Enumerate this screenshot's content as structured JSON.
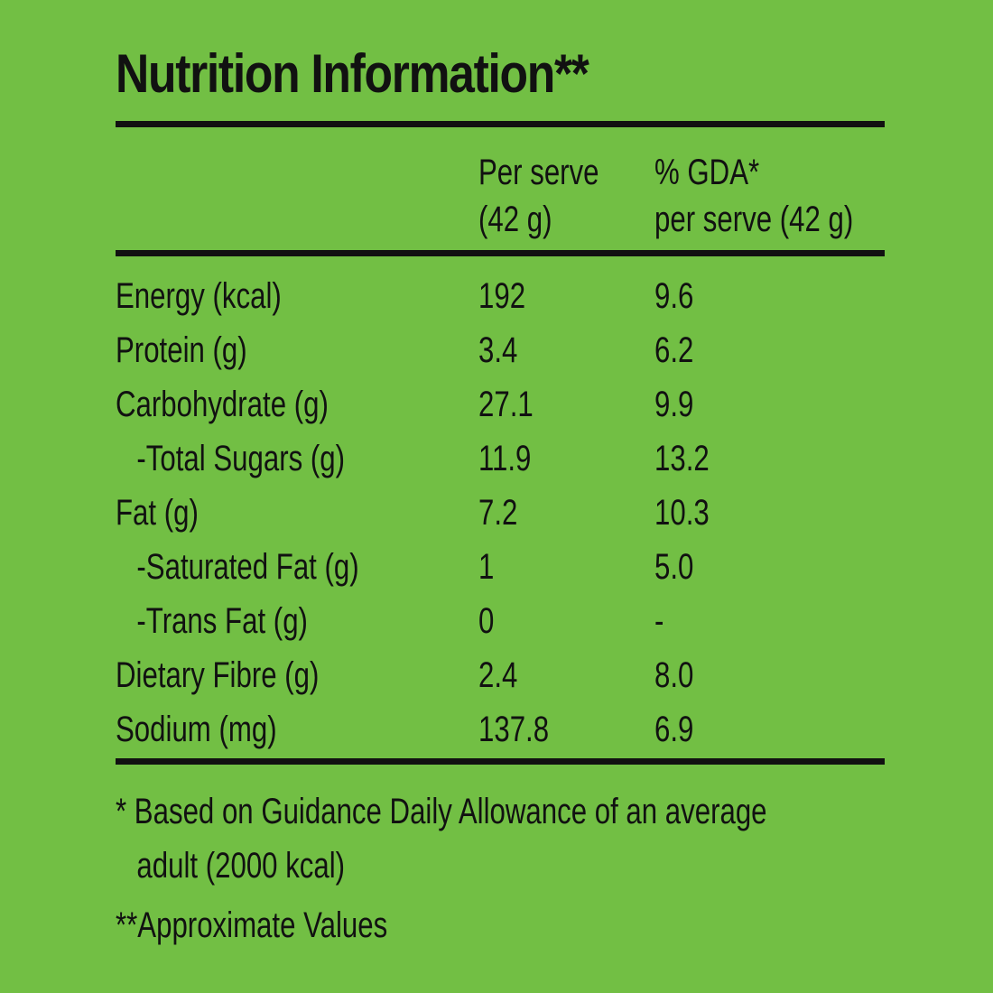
{
  "title": "Nutrition Information**",
  "header": {
    "per_serve_line1": "Per serve",
    "per_serve_line2": "(42 g)",
    "gda_line1": "% GDA*",
    "gda_line2": "per serve (42 g)"
  },
  "rows": [
    {
      "label": "Energy (kcal)",
      "per_serve": "192",
      "gda": "9.6",
      "indent": false
    },
    {
      "label": "Protein (g)",
      "per_serve": "3.4",
      "gda": "6.2",
      "indent": false
    },
    {
      "label": "Carbohydrate (g)",
      "per_serve": "27.1",
      "gda": "9.9",
      "indent": false
    },
    {
      "label": "-Total Sugars (g)",
      "per_serve": "11.9",
      "gda": "13.2",
      "indent": true
    },
    {
      "label": "Fat (g)",
      "per_serve": "7.2",
      "gda": "10.3",
      "indent": false
    },
    {
      "label": "-Saturated Fat (g)",
      "per_serve": "1",
      "gda": "5.0",
      "indent": true
    },
    {
      "label": "-Trans Fat (g)",
      "per_serve": "0",
      "gda": "-",
      "indent": true
    },
    {
      "label": "Dietary Fibre (g)",
      "per_serve": "2.4",
      "gda": "8.0",
      "indent": false
    },
    {
      "label": "Sodium (mg)",
      "per_serve": "137.8",
      "gda": "6.9",
      "indent": false
    }
  ],
  "footnotes": {
    "gda_note_line1": "* Based on Guidance Daily Allowance of an average",
    "gda_note_line2": "adult (2000 kcal)",
    "approx_note": "**Approximate Values"
  },
  "colors": {
    "background": "#72bf44",
    "text": "#111111"
  }
}
